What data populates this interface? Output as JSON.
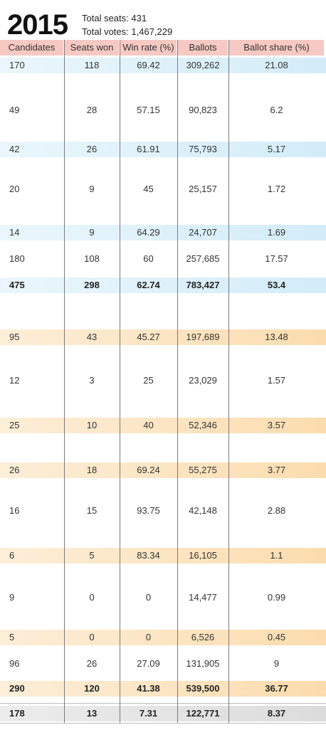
{
  "year": "2015",
  "total_seats_label": "Total seats:",
  "total_seats_value": "431",
  "total_votes_label": "Total votes:",
  "total_votes_value": "1,467,229",
  "headers": [
    "Candidates",
    "Seats won",
    "Win rate (%)",
    "Ballots",
    "Ballot share (%)"
  ],
  "colors": {
    "header": "#f7c9c3",
    "blue": "#d3ecf8",
    "orange": "#fbdcae",
    "gray": "#dcdcdc"
  },
  "rows": [
    {
      "cells": [
        "170",
        "118",
        "69.42",
        "309,262",
        "21.08"
      ],
      "band": "blue"
    },
    {
      "cells": [
        "49",
        "28",
        "57.15",
        "90,823",
        "6.2"
      ],
      "band": "none"
    },
    {
      "cells": [
        "42",
        "26",
        "61.91",
        "75,793",
        "5.17"
      ],
      "band": "blue"
    },
    {
      "cells": [
        "20",
        "9",
        "45",
        "25,157",
        "1.72"
      ],
      "band": "none"
    },
    {
      "cells": [
        "14",
        "9",
        "64.29",
        "24,707",
        "1.69"
      ],
      "band": "blue"
    },
    {
      "cells": [
        "180",
        "108",
        "60",
        "257,685",
        "17.57"
      ],
      "band": "none"
    },
    {
      "cells": [
        "475",
        "298",
        "62.74",
        "783,427",
        "53.4"
      ],
      "band": "blue",
      "bold": true
    },
    {
      "cells": [
        "95",
        "43",
        "45.27",
        "197,689",
        "13.48"
      ],
      "band": "orange"
    },
    {
      "cells": [
        "12",
        "3",
        "25",
        "23,029",
        "1.57"
      ],
      "band": "none"
    },
    {
      "cells": [
        "25",
        "10",
        "40",
        "52,346",
        "3.57"
      ],
      "band": "orange"
    },
    {
      "cells": [
        "26",
        "18",
        "69.24",
        "55,275",
        "3.77"
      ],
      "band": "orange"
    },
    {
      "cells": [
        "16",
        "15",
        "93.75",
        "42,148",
        "2.88"
      ],
      "band": "none"
    },
    {
      "cells": [
        "6",
        "5",
        "83.34",
        "16,105",
        "1.1"
      ],
      "band": "orange"
    },
    {
      "cells": [
        "9",
        "0",
        "0",
        "14,477",
        "0.99"
      ],
      "band": "none"
    },
    {
      "cells": [
        "5",
        "0",
        "0",
        "6,526",
        "0.45"
      ],
      "band": "orange"
    },
    {
      "cells": [
        "96",
        "26",
        "27.09",
        "131,905",
        "9"
      ],
      "band": "none"
    },
    {
      "cells": [
        "290",
        "120",
        "41.38",
        "539,500",
        "36.77"
      ],
      "band": "orange",
      "bold": true
    },
    {
      "cells": [
        "178",
        "13",
        "7.31",
        "122,771",
        "8.37"
      ],
      "band": "gray",
      "bold": true
    }
  ]
}
